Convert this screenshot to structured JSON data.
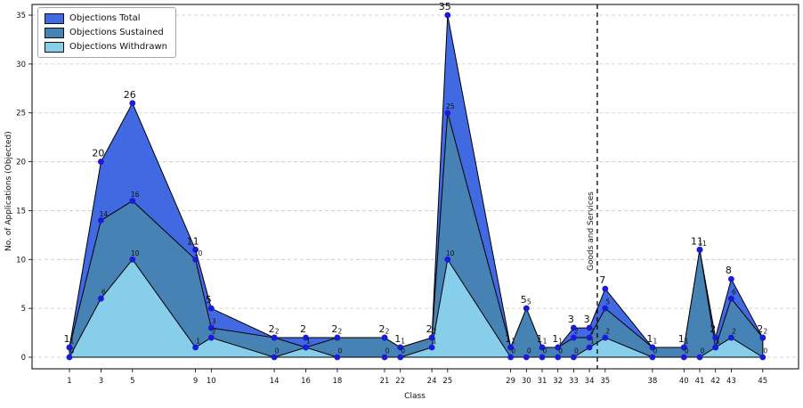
{
  "figure": {
    "xlabel": "Class",
    "ylabel": "No. of Applications (Objected)",
    "annotation_label": "Goods and Services"
  },
  "legend": {
    "position": "upper left",
    "items": [
      {
        "label": "Objections Total",
        "color": "#4169e1"
      },
      {
        "label": "Objections Sustained",
        "color": "#4682b4"
      },
      {
        "label": "Objections Withdrawn",
        "color": "#87ceeb"
      }
    ]
  },
  "chart_data": {
    "type": "area",
    "title": "",
    "xlabel": "Class",
    "ylabel": "No. of Applications (Objected)",
    "x": [
      1,
      3,
      5,
      9,
      10,
      14,
      16,
      18,
      21,
      22,
      24,
      25,
      29,
      30,
      31,
      32,
      33,
      34,
      35,
      38,
      40,
      41,
      42,
      43,
      45
    ],
    "series": [
      {
        "name": "Objections Total",
        "color": "#4169e1",
        "values": [
          1,
          20,
          26,
          11,
          5,
          2,
          2,
          2,
          2,
          1,
          2,
          35,
          1,
          5,
          1,
          1,
          3,
          3,
          7,
          1,
          1,
          11,
          2,
          8,
          2
        ]
      },
      {
        "name": "Objections Sustained",
        "color": "#4682b4",
        "values": [
          1,
          14,
          16,
          10,
          3,
          2,
          1,
          2,
          2,
          1,
          2,
          25,
          1,
          5,
          1,
          1,
          2,
          2,
          5,
          1,
          1,
          11,
          1,
          6,
          2
        ]
      },
      {
        "name": "Objections Withdrawn",
        "color": "#87ceeb",
        "values": [
          0,
          6,
          10,
          1,
          2,
          0,
          1,
          0,
          0,
          0,
          1,
          10,
          0,
          0,
          0,
          0,
          0,
          1,
          2,
          0,
          0,
          0,
          1,
          2,
          0
        ]
      }
    ],
    "xticks": [
      1,
      3,
      5,
      9,
      10,
      14,
      16,
      18,
      21,
      22,
      24,
      25,
      29,
      30,
      31,
      32,
      33,
      34,
      35,
      38,
      40,
      41,
      42,
      43,
      45
    ],
    "yticks": [
      0,
      5,
      10,
      15,
      20,
      25,
      30,
      35
    ],
    "ylim": [
      0,
      35
    ],
    "xlim": [
      1,
      45
    ],
    "grid": true,
    "grid_color": "#c9c9c9",
    "marker_color": "#1a1ad9",
    "edge_color": "#000000",
    "annotation": {
      "label": "Goods and Services",
      "x": 34.5,
      "line_style": "dashed",
      "line_color": "#000000"
    },
    "legend_position": "upper left"
  }
}
